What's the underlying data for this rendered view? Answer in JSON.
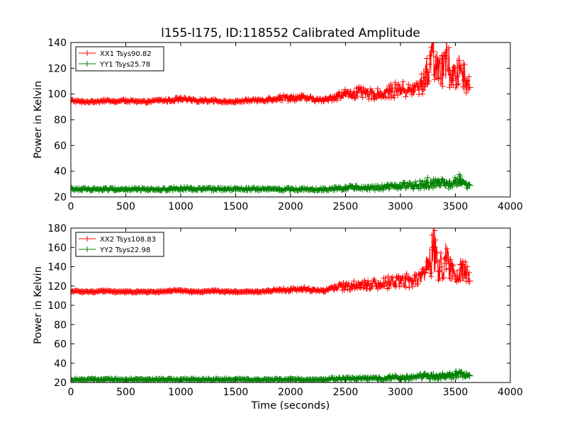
{
  "chart_data": [
    {
      "type": "scatter",
      "title": "l155-l175, ID:118552 Calibrated Amplitude",
      "xlabel": "",
      "ylabel": "Power in Kelvin",
      "xlim": [
        0,
        4000
      ],
      "ylim": [
        20,
        140
      ],
      "xticks": [
        0,
        500,
        1000,
        1500,
        2000,
        2500,
        3000,
        3500,
        4000
      ],
      "yticks": [
        20,
        40,
        60,
        80,
        100,
        120,
        140
      ],
      "legend_position": "upper-left",
      "series": [
        {
          "name": "XX1 Tsys90.82",
          "color": "#ff0000",
          "marker": "plus",
          "x": [
            0,
            100,
            200,
            300,
            400,
            500,
            600,
            700,
            800,
            900,
            1000,
            1100,
            1200,
            1300,
            1400,
            1500,
            1600,
            1700,
            1800,
            1900,
            2000,
            2100,
            2200,
            2300,
            2400,
            2500,
            2600,
            2700,
            2800,
            2900,
            3000,
            3100,
            3200,
            3250,
            3300,
            3350,
            3400,
            3450,
            3500,
            3550,
            3600,
            3630
          ],
          "y": [
            95,
            94,
            94,
            95,
            94,
            95,
            94,
            94,
            95,
            95,
            96,
            95,
            95,
            95,
            94,
            94,
            95,
            95,
            96,
            97,
            97,
            97,
            96,
            95,
            98,
            100,
            101,
            100,
            100,
            102,
            104,
            102,
            108,
            117,
            140,
            112,
            130,
            118,
            112,
            122,
            110,
            105
          ]
        },
        {
          "name": "YY1 Tsys25.78",
          "color": "#008000",
          "marker": "plus",
          "x": [
            0,
            100,
            200,
            300,
            400,
            500,
            600,
            700,
            800,
            900,
            1000,
            1100,
            1200,
            1300,
            1400,
            1500,
            1600,
            1700,
            1800,
            1900,
            2000,
            2100,
            2200,
            2300,
            2400,
            2500,
            2600,
            2700,
            2800,
            2900,
            3000,
            3100,
            3200,
            3250,
            3300,
            3350,
            3400,
            3450,
            3500,
            3550,
            3600,
            3630
          ],
          "y": [
            26,
            26,
            26,
            26,
            26,
            26,
            26,
            26,
            26,
            26,
            27,
            26,
            26,
            26,
            26,
            26,
            26,
            26,
            26,
            26,
            26,
            26,
            26,
            26,
            27,
            27,
            27,
            27,
            27,
            28,
            29,
            29,
            30,
            31,
            32,
            30,
            31,
            30,
            31,
            33,
            30,
            29
          ]
        }
      ]
    },
    {
      "type": "scatter",
      "title": "",
      "xlabel": "Time (seconds)",
      "ylabel": "Power in Kelvin",
      "xlim": [
        0,
        4000
      ],
      "ylim": [
        20,
        180
      ],
      "xticks": [
        0,
        500,
        1000,
        1500,
        2000,
        2500,
        3000,
        3500,
        4000
      ],
      "yticks": [
        20,
        40,
        60,
        80,
        100,
        120,
        140,
        160,
        180
      ],
      "legend_position": "upper-left",
      "series": [
        {
          "name": "XX2 Tsys108.83",
          "color": "#ff0000",
          "marker": "plus",
          "x": [
            0,
            100,
            200,
            300,
            400,
            500,
            600,
            700,
            800,
            900,
            1000,
            1100,
            1200,
            1300,
            1400,
            1500,
            1600,
            1700,
            1800,
            1900,
            2000,
            2100,
            2200,
            2300,
            2400,
            2500,
            2600,
            2700,
            2800,
            2900,
            3000,
            3100,
            3200,
            3250,
            3300,
            3350,
            3400,
            3450,
            3500,
            3550,
            3600,
            3630
          ],
          "y": [
            115,
            114,
            114,
            115,
            114,
            114,
            114,
            114,
            114,
            115,
            115,
            114,
            114,
            115,
            114,
            114,
            114,
            114,
            115,
            116,
            116,
            117,
            116,
            115,
            118,
            120,
            121,
            122,
            122,
            124,
            126,
            125,
            132,
            140,
            160,
            135,
            148,
            138,
            130,
            142,
            132,
            125
          ]
        },
        {
          "name": "YY2 Tsys22.98",
          "color": "#008000",
          "marker": "plus",
          "x": [
            0,
            100,
            200,
            300,
            400,
            500,
            600,
            700,
            800,
            900,
            1000,
            1100,
            1200,
            1300,
            1400,
            1500,
            1600,
            1700,
            1800,
            1900,
            2000,
            2100,
            2200,
            2300,
            2400,
            2500,
            2600,
            2700,
            2800,
            2900,
            3000,
            3100,
            3200,
            3250,
            3300,
            3350,
            3400,
            3450,
            3500,
            3550,
            3600,
            3630
          ],
          "y": [
            23,
            23,
            23,
            23,
            23,
            23,
            23,
            23,
            23,
            23,
            23,
            23,
            23,
            23,
            23,
            23,
            23,
            23,
            23,
            23,
            23,
            23,
            23,
            23,
            24,
            24,
            24,
            24,
            24,
            25,
            25,
            25,
            26,
            27,
            28,
            26,
            27,
            27,
            28,
            30,
            28,
            27
          ]
        }
      ]
    }
  ]
}
